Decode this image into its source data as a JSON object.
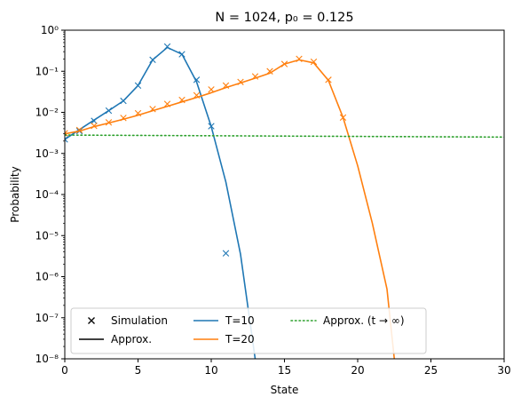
{
  "chart_data": {
    "type": "line",
    "title": "N = 1024, p₀ = 0.125",
    "xlabel": "State",
    "ylabel": "Probability",
    "xlim": [
      0,
      30
    ],
    "ylim": [
      1e-08,
      1
    ],
    "yscale": "log",
    "grid": false,
    "legend_position": "lower-left",
    "legend_columns": 3,
    "x_ticks": [
      0,
      5,
      10,
      15,
      20,
      25,
      30
    ],
    "y_ticks": [
      {
        "value": 1e-08,
        "label": "10⁻⁸"
      },
      {
        "value": 1e-07,
        "label": "10⁻⁷"
      },
      {
        "value": 1e-06,
        "label": "10⁻⁶"
      },
      {
        "value": 1e-05,
        "label": "10⁻⁵"
      },
      {
        "value": 0.0001,
        "label": "10⁻⁴"
      },
      {
        "value": 0.001,
        "label": "10⁻³"
      },
      {
        "value": 0.01,
        "label": "10⁻²"
      },
      {
        "value": 0.1,
        "label": "10⁻¹"
      },
      {
        "value": 1,
        "label": "10⁰"
      }
    ],
    "legend": [
      {
        "kind": "marker",
        "label": "Simulation",
        "color": "#000000"
      },
      {
        "kind": "line",
        "label": "Approx.",
        "color": "#000000"
      },
      {
        "kind": "line",
        "label": "T=10",
        "color": "#1f77b4"
      },
      {
        "kind": "line",
        "label": "T=20",
        "color": "#ff7f0e"
      },
      {
        "kind": "dotted",
        "label": "Approx. (t → ∞)",
        "color": "#2ca02c"
      }
    ],
    "series": [
      {
        "name": "T=10",
        "color": "#1f77b4",
        "approx_x": [
          0,
          1,
          2,
          3,
          4,
          5,
          6,
          7,
          8,
          9,
          10,
          11,
          12,
          13
        ],
        "approx_y": [
          0.0022,
          0.0038,
          0.0065,
          0.011,
          0.019,
          0.045,
          0.19,
          0.38,
          0.26,
          0.055,
          0.0045,
          0.0002,
          3.5e-06,
          1e-08
        ],
        "sim_x": [
          0,
          1,
          2,
          3,
          4,
          5,
          6,
          7,
          8,
          9,
          10,
          11
        ],
        "sim_y": [
          0.0022,
          0.0035,
          0.0062,
          0.011,
          0.019,
          0.045,
          0.19,
          0.4,
          0.26,
          0.062,
          0.0046,
          3.7e-06
        ]
      },
      {
        "name": "T=20",
        "color": "#ff7f0e",
        "approx_x": [
          0,
          1,
          2,
          3,
          4,
          5,
          6,
          7,
          8,
          9,
          10,
          11,
          12,
          13,
          14,
          15,
          16,
          17,
          18,
          19,
          20,
          21,
          22,
          22.5
        ],
        "approx_y": [
          0.003,
          0.0035,
          0.0045,
          0.0055,
          0.0068,
          0.0085,
          0.011,
          0.014,
          0.018,
          0.023,
          0.03,
          0.04,
          0.052,
          0.068,
          0.09,
          0.15,
          0.19,
          0.16,
          0.06,
          0.0075,
          0.0005,
          2e-05,
          5e-07,
          1e-08
        ],
        "sim_x": [
          0,
          1,
          2,
          3,
          4,
          5,
          6,
          7,
          8,
          9,
          10,
          11,
          12,
          13,
          14,
          15,
          16,
          17,
          18,
          19
        ],
        "sim_y": [
          0.0031,
          0.0037,
          0.0047,
          0.0057,
          0.0073,
          0.0095,
          0.012,
          0.016,
          0.02,
          0.026,
          0.036,
          0.045,
          0.055,
          0.075,
          0.1,
          0.15,
          0.2,
          0.17,
          0.062,
          0.0075
        ]
      },
      {
        "name": "Approx. (t → ∞)",
        "color": "#2ca02c",
        "style": "dotted",
        "approx_x": [
          0,
          30
        ],
        "approx_y": [
          0.0028,
          0.0025
        ]
      }
    ]
  }
}
